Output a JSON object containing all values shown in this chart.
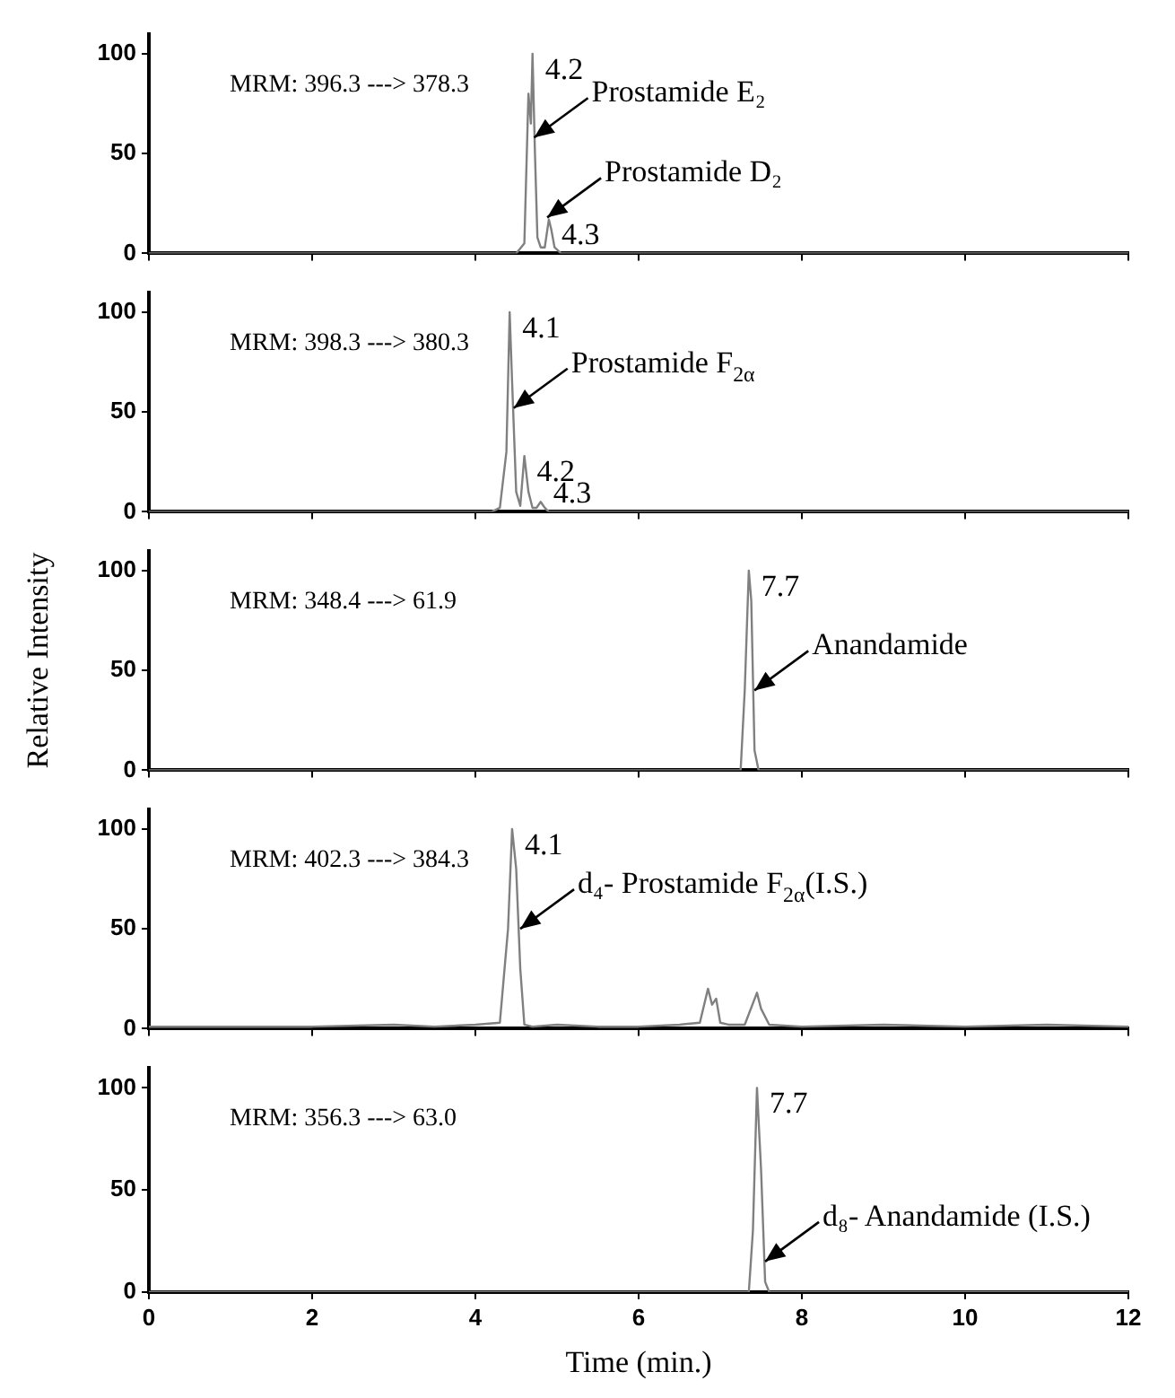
{
  "chart_data": [
    {
      "type": "line",
      "xlim": [
        0,
        12
      ],
      "xticks": [
        0,
        2,
        4,
        6,
        8,
        10,
        12
      ],
      "ylim": [
        0,
        110
      ],
      "yticks": [
        0,
        50,
        100
      ],
      "grid": false,
      "legend": false,
      "tick_labels": "y",
      "marker": "none",
      "annotations": [
        "MRM: 396.3 ---> 378.3",
        {
          "text": "4.2",
          "x": 4.7,
          "y": 100
        },
        {
          "text": "Prostamide E₂",
          "x": 4.72,
          "y": 58
        },
        {
          "text": "Prostamide D₂",
          "x": 4.88,
          "y": 18
        },
        {
          "text": "4.3",
          "x": 4.9,
          "y": 17
        }
      ],
      "series": [
        {
          "color": "#808080",
          "x": [
            0,
            4.5,
            4.6,
            4.65,
            4.68,
            4.7,
            4.73,
            4.76,
            4.8,
            4.85,
            4.9,
            4.93,
            4.97,
            5.05,
            12
          ],
          "values": [
            0,
            0,
            5,
            80,
            65,
            100,
            50,
            8,
            3,
            3,
            17,
            12,
            3,
            0,
            0
          ]
        }
      ]
    },
    {
      "type": "line",
      "xlim": [
        0,
        12
      ],
      "xticks": [
        0,
        2,
        4,
        6,
        8,
        10,
        12
      ],
      "ylim": [
        0,
        110
      ],
      "yticks": [
        0,
        50,
        100
      ],
      "grid": false,
      "legend": false,
      "tick_labels": "y",
      "marker": "none",
      "annotations": [
        "MRM: 398.3 ---> 380.3",
        {
          "text": "4.1",
          "x": 4.42,
          "y": 100
        },
        {
          "text": "Prostamide F$_{2α}$",
          "x": 4.47,
          "y": 52
        },
        {
          "text": "4.2",
          "x": 4.6,
          "y": 28
        },
        {
          "text": "4.3",
          "x": 4.8,
          "y": 5
        }
      ],
      "series": [
        {
          "color": "#808080",
          "x": [
            0,
            4.2,
            4.3,
            4.38,
            4.42,
            4.45,
            4.5,
            4.55,
            4.6,
            4.65,
            4.7,
            4.75,
            4.8,
            4.85,
            4.9,
            5.0,
            12
          ],
          "values": [
            0,
            0,
            2,
            30,
            100,
            65,
            10,
            3,
            28,
            10,
            2,
            2,
            5,
            2,
            0,
            0,
            0
          ]
        }
      ]
    },
    {
      "type": "line",
      "xlim": [
        0,
        12
      ],
      "xticks": [
        0,
        2,
        4,
        6,
        8,
        10,
        12
      ],
      "ylim": [
        0,
        110
      ],
      "yticks": [
        0,
        50,
        100
      ],
      "grid": false,
      "legend": false,
      "tick_labels": "y",
      "marker": "none",
      "ylabel": "Relative Intensity",
      "annotations": [
        "MRM: 348.4 ---> 61.9",
        {
          "text": "7.7",
          "x": 7.35,
          "y": 100
        },
        {
          "text": "Anandamide",
          "x": 7.42,
          "y": 40
        }
      ],
      "series": [
        {
          "color": "#808080",
          "x": [
            0,
            7.25,
            7.3,
            7.35,
            7.38,
            7.42,
            7.47,
            12
          ],
          "values": [
            0,
            0,
            40,
            100,
            85,
            10,
            0,
            0
          ]
        }
      ]
    },
    {
      "type": "line",
      "xlim": [
        0,
        12
      ],
      "xticks": [
        0,
        2,
        4,
        6,
        8,
        10,
        12
      ],
      "ylim": [
        0,
        110
      ],
      "yticks": [
        0,
        50,
        100
      ],
      "grid": false,
      "legend": false,
      "tick_labels": "y",
      "marker": "none",
      "annotations": [
        "MRM: 402.3 ---> 384.3",
        {
          "text": "4.1",
          "x": 4.45,
          "y": 100
        },
        {
          "text": "d₄- Prostamide F$_{2α}$(I.S.)",
          "x": 4.55,
          "y": 50
        }
      ],
      "series": [
        {
          "color": "#808080",
          "x": [
            0,
            1,
            2,
            3,
            3.5,
            4,
            4.3,
            4.4,
            4.45,
            4.5,
            4.55,
            4.6,
            4.7,
            5,
            5.5,
            6,
            6.5,
            6.75,
            6.85,
            6.9,
            6.95,
            7.0,
            7.1,
            7.3,
            7.45,
            7.5,
            7.6,
            8,
            9,
            10,
            11,
            12
          ],
          "values": [
            1,
            1,
            1,
            2,
            1,
            2,
            3,
            50,
            100,
            80,
            30,
            2,
            1,
            2,
            1,
            1,
            2,
            3,
            20,
            12,
            15,
            3,
            2,
            2,
            18,
            10,
            2,
            1,
            2,
            1,
            2,
            1
          ]
        }
      ]
    },
    {
      "type": "line",
      "xlim": [
        0,
        12
      ],
      "xticks": [
        0,
        2,
        4,
        6,
        8,
        10,
        12
      ],
      "ylim": [
        0,
        110
      ],
      "yticks": [
        0,
        50,
        100
      ],
      "grid": false,
      "legend": false,
      "marker": "none",
      "xlabel": "Time (min.)",
      "annotations": [
        "MRM: 356.3 ---> 63.0",
        {
          "text": "7.7",
          "x": 7.45,
          "y": 100
        },
        {
          "text": "d₈- Anandamide (I.S.)",
          "x": 7.55,
          "y": 15
        }
      ],
      "series": [
        {
          "color": "#808080",
          "x": [
            0,
            7.35,
            7.4,
            7.45,
            7.5,
            7.55,
            7.6,
            12
          ],
          "values": [
            0,
            0,
            30,
            100,
            60,
            5,
            0,
            0
          ]
        }
      ]
    }
  ]
}
